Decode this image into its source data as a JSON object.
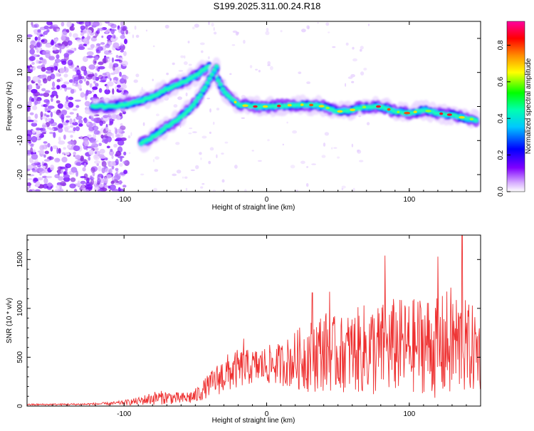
{
  "title": "S199.2025.311.00.24.R18",
  "chart_data": [
    {
      "type": "heatmap",
      "xlabel": "Height of straight line (km)",
      "ylabel": "Frequency (Hz)",
      "xlim": [
        -168,
        150
      ],
      "ylim": [
        -25,
        25
      ],
      "xticks": [
        -100,
        0,
        100
      ],
      "yticks": [
        -20,
        -10,
        0,
        10,
        20
      ],
      "colorbar": {
        "label": "Normalized spectral amplitude",
        "range": [
          0,
          0.93
        ],
        "ticks": [
          0,
          0.2,
          0.4,
          0.6,
          0.8
        ],
        "tick_labels": [
          "0.0",
          "0.2",
          "0.4",
          "0.6",
          "0.8"
        ]
      },
      "features": [
        {
          "name": "main-band",
          "x": [
            -122,
            -110,
            -100,
            -90,
            -80,
            -70,
            -60,
            -50,
            -40,
            -30,
            -20,
            -10,
            0,
            10,
            20,
            30,
            40,
            50,
            60,
            70,
            80,
            90,
            100,
            110,
            120,
            130,
            140,
            148
          ],
          "y": [
            0,
            0,
            0.5,
            1.5,
            3,
            5,
            7,
            9,
            12,
            4.5,
            0.5,
            0,
            0,
            0.2,
            0.5,
            0.5,
            0,
            -1.5,
            -1,
            0,
            0,
            -1.5,
            -2,
            -1,
            -2,
            -2.5,
            -3.5,
            -4
          ]
        },
        {
          "name": "lower-branch",
          "x": [
            -88,
            -80,
            -70,
            -60,
            -50,
            -40,
            -35
          ],
          "y": [
            -11,
            -9,
            -6,
            -3,
            1,
            8,
            12
          ]
        }
      ]
    },
    {
      "type": "line",
      "xlabel": "Height of straight line (km)",
      "ylabel": "SNR (10 * v/v)",
      "xlim": [
        -168,
        150
      ],
      "ylim": [
        0,
        1750
      ],
      "xticks": [
        -100,
        0,
        100
      ],
      "yticks": [
        0,
        500,
        1000,
        1500
      ],
      "color": "#ee3030",
      "envelope": {
        "x": [
          -168,
          -130,
          -110,
          -100,
          -90,
          -80,
          -70,
          -60,
          -50,
          -40,
          -30,
          -20,
          -10,
          0,
          10,
          20,
          30,
          40,
          50,
          60,
          70,
          80,
          90,
          100,
          110,
          120,
          130,
          140,
          150
        ],
        "mean": [
          15,
          18,
          25,
          35,
          50,
          80,
          90,
          75,
          100,
          220,
          320,
          380,
          400,
          420,
          430,
          470,
          520,
          570,
          520,
          560,
          580,
          560,
          620,
          600,
          650,
          580,
          650,
          600,
          560
        ],
        "amplitude": [
          8,
          10,
          15,
          25,
          40,
          70,
          70,
          60,
          80,
          120,
          200,
          200,
          180,
          200,
          220,
          300,
          380,
          420,
          380,
          420,
          480,
          500,
          500,
          480,
          520,
          520,
          600,
          480,
          420
        ]
      },
      "peaks": [
        {
          "x": 137,
          "y": 1750
        },
        {
          "x": 83,
          "y": 1540
        },
        {
          "x": 120,
          "y": 1530
        },
        {
          "x": 44,
          "y": 1170
        },
        {
          "x": 32,
          "y": 1160
        },
        {
          "x": -16,
          "y": 690
        }
      ]
    }
  ]
}
